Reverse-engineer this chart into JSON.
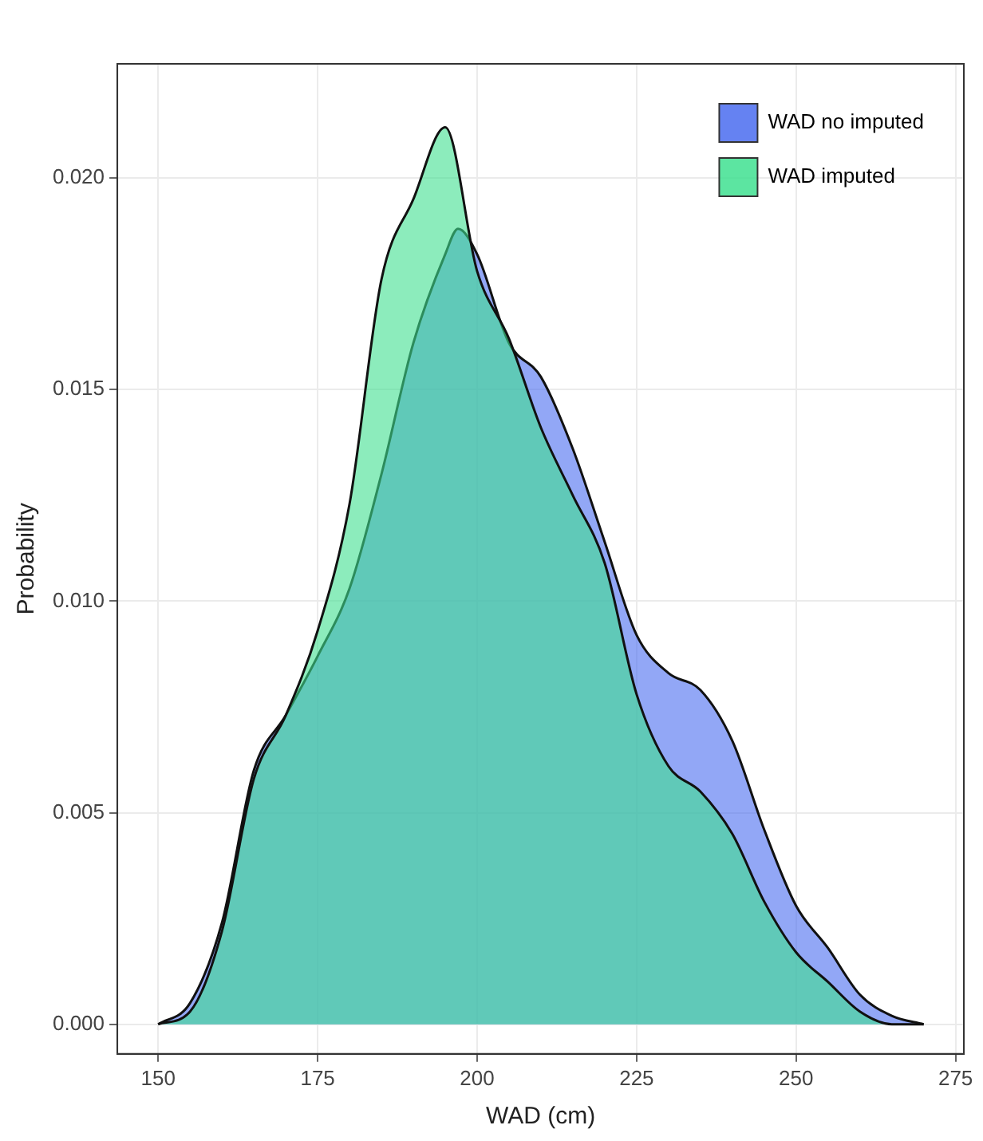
{
  "chart_data": {
    "type": "area",
    "xlabel": "WAD (cm)",
    "ylabel": "Probability",
    "xlim": [
      143.6,
      276.3
    ],
    "xticks": [
      150,
      175,
      200,
      225,
      250,
      275
    ],
    "ylim": [
      -0.0007,
      0.0227
    ],
    "yticks": [
      {
        "value": 0,
        "label": "0.000"
      },
      {
        "value": 0.005,
        "label": "0.005"
      },
      {
        "value": 0.01,
        "label": "0.010"
      },
      {
        "value": 0.015,
        "label": "0.015"
      },
      {
        "value": 0.02,
        "label": "0.020"
      }
    ],
    "grid": true,
    "legend": "top right",
    "series": [
      {
        "name": "WAD no imputed",
        "color": "#4a6cf0",
        "x": [
          150,
          155,
          160,
          165,
          170,
          175,
          180,
          185,
          190,
          195,
          197,
          200,
          205,
          210,
          215,
          220,
          225,
          230,
          235,
          240,
          245,
          250,
          255,
          260,
          265,
          270
        ],
        "values": [
          0,
          0.0005,
          0.0024,
          0.006,
          0.0073,
          0.0087,
          0.0103,
          0.013,
          0.0161,
          0.0182,
          0.0188,
          0.0182,
          0.0161,
          0.0153,
          0.0136,
          0.0114,
          0.0092,
          0.0083,
          0.0079,
          0.0067,
          0.0046,
          0.0028,
          0.0018,
          0.0007,
          0.0002,
          0
        ]
      },
      {
        "name": "WAD imputed",
        "color": "#40e090",
        "x": [
          150,
          155,
          160,
          165,
          170,
          175,
          180,
          185,
          190,
          195,
          200,
          205,
          210,
          215,
          220,
          225,
          230,
          235,
          240,
          245,
          250,
          255,
          260,
          265,
          270
        ],
        "values": [
          0,
          0.0003,
          0.0022,
          0.0058,
          0.0073,
          0.0093,
          0.0123,
          0.0176,
          0.0195,
          0.0212,
          0.0178,
          0.0162,
          0.0141,
          0.0125,
          0.0109,
          0.0078,
          0.0061,
          0.0055,
          0.0045,
          0.0029,
          0.0017,
          0.001,
          0.0003,
          0,
          0
        ]
      }
    ]
  }
}
